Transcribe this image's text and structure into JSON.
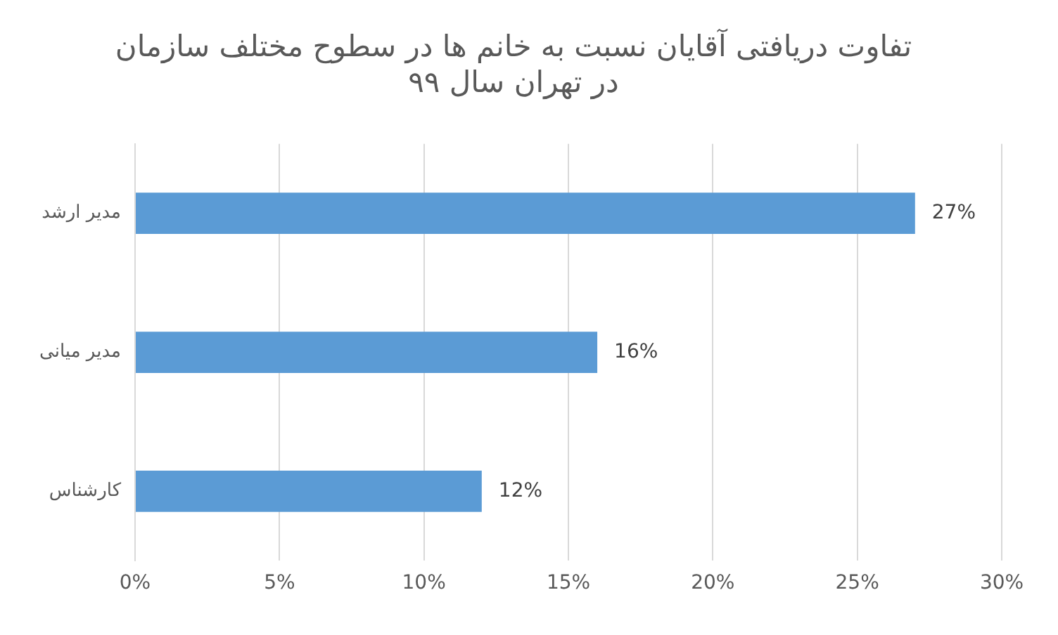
{
  "chart_data": {
    "type": "bar",
    "orientation": "horizontal",
    "title": "تفاوت دریافتی آقایان نسبت به خانم ها در سطوح مختلف سازمان\nدر تهران سال ۹۹",
    "categories": [
      "مدیر ارشد",
      "مدیر میانی",
      "کارشناس"
    ],
    "values": [
      27,
      16,
      12
    ],
    "value_labels": [
      "27%",
      "16%",
      "12%"
    ],
    "color": "#5b9bd5",
    "xlim": [
      0,
      30
    ],
    "xticks": [
      {
        "value": 0,
        "label": "0%"
      },
      {
        "value": 5,
        "label": "5%"
      },
      {
        "value": 10,
        "label": "10%"
      },
      {
        "value": 15,
        "label": "15%"
      },
      {
        "value": 20,
        "label": "20%"
      },
      {
        "value": 25,
        "label": "25%"
      },
      {
        "value": 30,
        "label": "30%"
      }
    ],
    "grid": "x",
    "legend": false
  }
}
